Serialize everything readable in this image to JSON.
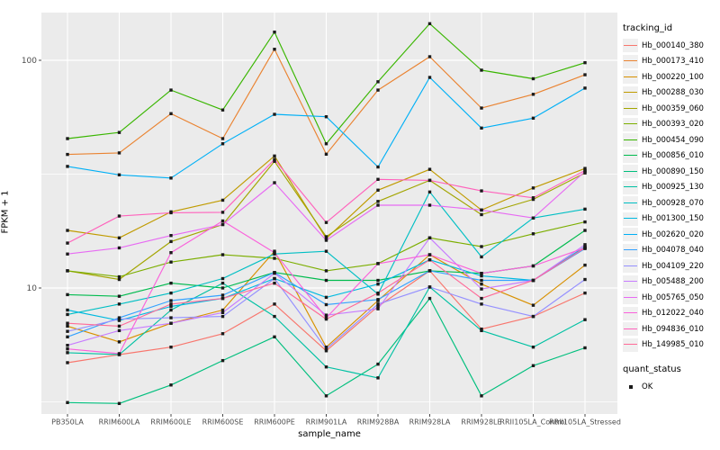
{
  "chart": {
    "x_axis_title": "sample_name",
    "y_axis_title": "FPKM + 1",
    "y_ticks": [
      {
        "label": "100",
        "value": 100
      },
      {
        "label": "10",
        "value": 10
      }
    ],
    "y_minor_breaks": [
      31.623,
      3.1623
    ],
    "legend_line_title": "tracking_id",
    "legend_point_title": "quant_status",
    "legend_point_items": [
      {
        "label": "OK",
        "color": "#1a1a1a"
      }
    ],
    "panel_color": "#EBEBEB",
    "grid_color": "#FFFFFF",
    "tick_label_color": "#4D4D4D",
    "point_color": "#1a1a1a"
  },
  "chart_data": {
    "type": "line",
    "title": "",
    "xlabel": "sample_name",
    "ylabel": "FPKM + 1",
    "y_scale": "log10",
    "ylim": [
      2.8,
      162
    ],
    "grid": true,
    "legend_position": "right",
    "point_shape": "filled-black-square (quant_status = OK for every point)",
    "categories": [
      "PB350LA",
      "RRIM600LA",
      "RRIM600LE",
      "RRIM600SE",
      "RRIM600PE",
      "RRIM901LA",
      "RRIM928BA",
      "RRIM928LA",
      "RRIM928LE",
      "RRII105LA_Control",
      "RRII105LA_Stressed"
    ],
    "series": [
      {
        "name": "Hb_000140_380",
        "color": "#F8766D",
        "values": [
          4.7,
          5.1,
          5.5,
          6.3,
          8.5,
          5.3,
          8.3,
          11.9,
          6.6,
          7.5,
          9.5
        ]
      },
      {
        "name": "Hb_000173_410",
        "color": "#EA8331",
        "values": [
          38.6,
          39.2,
          58.3,
          45.3,
          111.8,
          38.7,
          74.0,
          103.7,
          61.7,
          70.9,
          86.4
        ]
      },
      {
        "name": "Hb_000220_100",
        "color": "#D89000",
        "values": [
          6.8,
          5.8,
          7.0,
          8.0,
          14.5,
          5.5,
          8.8,
          14.0,
          10.4,
          8.4,
          12.6
        ]
      },
      {
        "name": "Hb_000288_030",
        "color": "#C09B00",
        "values": [
          17.9,
          16.6,
          21.6,
          24.3,
          38.0,
          16.5,
          26.9,
          33.2,
          22.0,
          27.5,
          33.5
        ]
      },
      {
        "name": "Hb_000359_060",
        "color": "#A3A500",
        "values": [
          11.9,
          10.9,
          16.0,
          19.0,
          36.0,
          16.8,
          24.0,
          29.7,
          21.0,
          24.5,
          32.0
        ]
      },
      {
        "name": "Hb_000393_020",
        "color": "#7CAE00",
        "values": [
          11.9,
          11.2,
          13.0,
          14.0,
          13.5,
          11.9,
          12.8,
          16.6,
          15.2,
          17.3,
          19.5
        ]
      },
      {
        "name": "Hb_000454_090",
        "color": "#39B600",
        "values": [
          45.3,
          48.2,
          74.0,
          60.5,
          133.0,
          43.0,
          80.5,
          144.8,
          90.5,
          83.0,
          97.6
        ]
      },
      {
        "name": "Hb_000856_010",
        "color": "#00BB4E",
        "values": [
          9.35,
          9.2,
          10.5,
          10.0,
          11.7,
          10.8,
          10.8,
          11.9,
          11.6,
          12.5,
          17.9
        ]
      },
      {
        "name": "Hb_000890_150",
        "color": "#00BF7D",
        "values": [
          3.14,
          3.11,
          3.75,
          4.8,
          6.1,
          3.36,
          4.63,
          9.0,
          3.36,
          4.56,
          5.46
        ]
      },
      {
        "name": "Hb_000925_130",
        "color": "#00C1A3",
        "values": [
          5.2,
          5.1,
          8.0,
          10.5,
          7.5,
          4.5,
          4.03,
          10.1,
          6.5,
          5.5,
          7.26
        ]
      },
      {
        "name": "Hb_000928_070",
        "color": "#00BFC4",
        "values": [
          7.65,
          8.5,
          9.5,
          11.0,
          14.1,
          14.5,
          9.4,
          26.4,
          13.7,
          20.3,
          22.2
        ]
      },
      {
        "name": "Hb_001300_150",
        "color": "#00BAE0",
        "values": [
          8.0,
          7.2,
          8.3,
          9.0,
          11.0,
          9.1,
          10.4,
          13.3,
          11.3,
          10.8,
          15.2
        ]
      },
      {
        "name": "Hb_002620_020",
        "color": "#00B0F6",
        "values": [
          34.2,
          31.4,
          30.4,
          43.0,
          57.9,
          56.5,
          34.0,
          84.1,
          50.4,
          55.7,
          75.5
        ]
      },
      {
        "name": "Hb_004078_040",
        "color": "#35A2FF",
        "values": [
          6.1,
          7.4,
          8.8,
          9.3,
          11.7,
          8.45,
          8.9,
          11.9,
          10.8,
          10.8,
          14.9
        ]
      },
      {
        "name": "Hb_004109_220",
        "color": "#9590FF",
        "values": [
          6.45,
          7.3,
          7.4,
          7.5,
          11.0,
          5.4,
          8.5,
          10.1,
          8.5,
          7.5,
          10.9
        ]
      },
      {
        "name": "Hb_005488_200",
        "color": "#C77CFF",
        "values": [
          5.6,
          6.5,
          7.0,
          7.8,
          11.6,
          7.6,
          8.1,
          16.6,
          9.9,
          10.8,
          15.5
        ]
      },
      {
        "name": "Hb_005765_050",
        "color": "#E76BF3",
        "values": [
          14.1,
          15.0,
          17.0,
          19.0,
          29.0,
          16.2,
          23.1,
          23.1,
          22.0,
          20.3,
          32.5
        ]
      },
      {
        "name": "Hb_012022_040",
        "color": "#FA62DB",
        "values": [
          5.4,
          5.15,
          14.3,
          19.7,
          14.3,
          7.4,
          12.8,
          14.0,
          11.6,
          12.5,
          15.0
        ]
      },
      {
        "name": "Hb_094836_010",
        "color": "#FF62BC",
        "values": [
          15.75,
          20.7,
          21.4,
          21.5,
          36.7,
          19.4,
          30.0,
          29.7,
          26.7,
          24.9,
          32.8
        ]
      },
      {
        "name": "Hb_149985_010",
        "color": "#FF6A98",
        "values": [
          7.0,
          6.8,
          8.5,
          9.0,
          10.5,
          7.3,
          9.5,
          13.3,
          9.0,
          10.8,
          15.0
        ]
      }
    ]
  }
}
